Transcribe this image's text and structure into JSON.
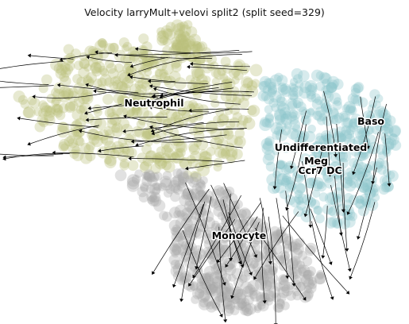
{
  "chart_data": {
    "type": "scatter",
    "title": "Velocity larryMult+velovi split2 (split seed=329)",
    "xlabel": "",
    "ylabel": "",
    "axes_visible": false,
    "grid": false,
    "legend": "on-data",
    "overlay": "velocity streamlines with arrowheads",
    "clusters": [
      {
        "name": "Neutrophil",
        "color": "#b9bf7a"
      },
      {
        "name": "Baso",
        "color": "#8cc6cc"
      },
      {
        "name": "Undifferentiated",
        "color": "#9ecbc8"
      },
      {
        "name": "Meg",
        "color": "#9ecbc8"
      },
      {
        "name": "Ccr7 DC",
        "color": "#9ecbc8"
      },
      {
        "name": "Monocyte",
        "color": "#a9a9a9"
      }
    ]
  }
}
